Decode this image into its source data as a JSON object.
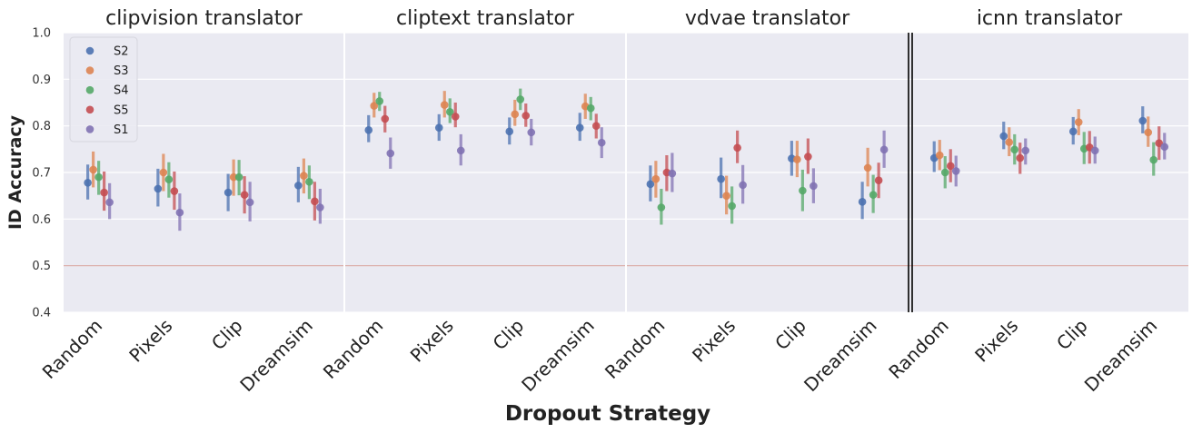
{
  "chart_data": {
    "type": "scatter",
    "ylabel": "ID Accuracy",
    "xlabel": "Dropout Strategy",
    "ylim": [
      0.4,
      1.0
    ],
    "yticks": [
      "0.4",
      "0.5",
      "0.6",
      "0.7",
      "0.8",
      "0.9",
      "1.0"
    ],
    "reference_line": 0.5,
    "reference_color": "#d9a9a6",
    "grid": true,
    "legend_position": "top-left",
    "categories": [
      "Random",
      "Pixels",
      "Clip",
      "Dreamsim"
    ],
    "series_meta": [
      {
        "name": "S2",
        "color": "#4c72b0"
      },
      {
        "name": "S3",
        "color": "#dd8452"
      },
      {
        "name": "S4",
        "color": "#55a868"
      },
      {
        "name": "S5",
        "color": "#c44e52"
      },
      {
        "name": "S1",
        "color": "#8172b3"
      }
    ],
    "panels": [
      {
        "title": "clipvision translator",
        "series": [
          {
            "name": "S2",
            "values": [
              0.678,
              0.665,
              0.657,
              0.672
            ],
            "ci": [
              [
                0.642,
                0.717
              ],
              [
                0.627,
                0.708
              ],
              [
                0.617,
                0.697
              ],
              [
                0.636,
                0.712
              ]
            ]
          },
          {
            "name": "S3",
            "values": [
              0.706,
              0.7,
              0.69,
              0.693
            ],
            "ci": [
              [
                0.668,
                0.745
              ],
              [
                0.66,
                0.74
              ],
              [
                0.65,
                0.728
              ],
              [
                0.655,
                0.73
              ]
            ]
          },
          {
            "name": "S4",
            "values": [
              0.69,
              0.685,
              0.69,
              0.68
            ],
            "ci": [
              [
                0.652,
                0.725
              ],
              [
                0.646,
                0.722
              ],
              [
                0.651,
                0.727
              ],
              [
                0.643,
                0.715
              ]
            ]
          },
          {
            "name": "S5",
            "values": [
              0.657,
              0.66,
              0.652,
              0.638
            ],
            "ci": [
              [
                0.618,
                0.702
              ],
              [
                0.62,
                0.702
              ],
              [
                0.612,
                0.692
              ],
              [
                0.597,
                0.68
              ]
            ]
          },
          {
            "name": "S1",
            "values": [
              0.636,
              0.614,
              0.636,
              0.625
            ],
            "ci": [
              [
                0.6,
                0.677
              ],
              [
                0.575,
                0.655
              ],
              [
                0.595,
                0.68
              ],
              [
                0.59,
                0.665
              ]
            ]
          }
        ]
      },
      {
        "title": "cliptext translator",
        "series": [
          {
            "name": "S2",
            "values": [
              0.791,
              0.796,
              0.788,
              0.796
            ],
            "ci": [
              [
                0.765,
                0.823
              ],
              [
                0.768,
                0.825
              ],
              [
                0.76,
                0.818
              ],
              [
                0.768,
                0.828
              ]
            ]
          },
          {
            "name": "S3",
            "values": [
              0.843,
              0.845,
              0.825,
              0.842
            ],
            "ci": [
              [
                0.818,
                0.871
              ],
              [
                0.818,
                0.875
              ],
              [
                0.8,
                0.856
              ],
              [
                0.815,
                0.869
              ]
            ]
          },
          {
            "name": "S4",
            "values": [
              0.853,
              0.83,
              0.857,
              0.838
            ],
            "ci": [
              [
                0.832,
                0.873
              ],
              [
                0.806,
                0.859
              ],
              [
                0.834,
                0.88
              ],
              [
                0.812,
                0.862
              ]
            ]
          },
          {
            "name": "S5",
            "values": [
              0.815,
              0.82,
              0.822,
              0.8
            ],
            "ci": [
              [
                0.786,
                0.843
              ],
              [
                0.797,
                0.85
              ],
              [
                0.798,
                0.848
              ],
              [
                0.773,
                0.826
              ]
            ]
          },
          {
            "name": "S1",
            "values": [
              0.741,
              0.747,
              0.786,
              0.764
            ],
            "ci": [
              [
                0.708,
                0.775
              ],
              [
                0.715,
                0.782
              ],
              [
                0.758,
                0.815
              ],
              [
                0.731,
                0.797
              ]
            ]
          }
        ]
      },
      {
        "title": "vdvae translator",
        "series": [
          {
            "name": "S2",
            "values": [
              0.675,
              0.686,
              0.73,
              0.637
            ],
            "ci": [
              [
                0.638,
                0.715
              ],
              [
                0.645,
                0.732
              ],
              [
                0.693,
                0.768
              ],
              [
                0.6,
                0.68
              ]
            ]
          },
          {
            "name": "S3",
            "values": [
              0.686,
              0.65,
              0.728,
              0.71
            ],
            "ci": [
              [
                0.646,
                0.725
              ],
              [
                0.61,
                0.693
              ],
              [
                0.69,
                0.768
              ],
              [
                0.67,
                0.753
              ]
            ]
          },
          {
            "name": "S4",
            "values": [
              0.625,
              0.628,
              0.661,
              0.652
            ],
            "ci": [
              [
                0.588,
                0.665
              ],
              [
                0.59,
                0.67
              ],
              [
                0.617,
                0.706
              ],
              [
                0.613,
                0.695
              ]
            ]
          },
          {
            "name": "S5",
            "values": [
              0.7,
              0.753,
              0.734,
              0.683
            ],
            "ci": [
              [
                0.66,
                0.737
              ],
              [
                0.72,
                0.79
              ],
              [
                0.697,
                0.773
              ],
              [
                0.645,
                0.721
              ]
            ]
          },
          {
            "name": "S1",
            "values": [
              0.698,
              0.673,
              0.671,
              0.749
            ],
            "ci": [
              [
                0.658,
                0.742
              ],
              [
                0.633,
                0.716
              ],
              [
                0.634,
                0.709
              ],
              [
                0.71,
                0.79
              ]
            ]
          }
        ]
      },
      {
        "title": "icnn translator",
        "series": [
          {
            "name": "S2",
            "values": [
              0.731,
              0.778,
              0.788,
              0.811
            ],
            "ci": [
              [
                0.701,
                0.767
              ],
              [
                0.75,
                0.809
              ],
              [
                0.76,
                0.819
              ],
              [
                0.784,
                0.842
              ]
            ]
          },
          {
            "name": "S3",
            "values": [
              0.737,
              0.765,
              0.808,
              0.786
            ],
            "ci": [
              [
                0.705,
                0.77
              ],
              [
                0.735,
                0.797
              ],
              [
                0.78,
                0.836
              ],
              [
                0.755,
                0.82
              ]
            ]
          },
          {
            "name": "S4",
            "values": [
              0.7,
              0.749,
              0.751,
              0.727
            ],
            "ci": [
              [
                0.666,
                0.735
              ],
              [
                0.717,
                0.782
              ],
              [
                0.718,
                0.787
              ],
              [
                0.693,
                0.765
              ]
            ]
          },
          {
            "name": "S5",
            "values": [
              0.714,
              0.731,
              0.754,
              0.763
            ],
            "ci": [
              [
                0.679,
                0.75
              ],
              [
                0.697,
                0.764
              ],
              [
                0.719,
                0.789
              ],
              [
                0.727,
                0.799
              ]
            ]
          },
          {
            "name": "S1",
            "values": [
              0.703,
              0.747,
              0.747,
              0.755
            ],
            "ci": [
              [
                0.67,
                0.736
              ],
              [
                0.717,
                0.773
              ],
              [
                0.719,
                0.777
              ],
              [
                0.728,
                0.785
              ]
            ]
          }
        ]
      }
    ]
  }
}
